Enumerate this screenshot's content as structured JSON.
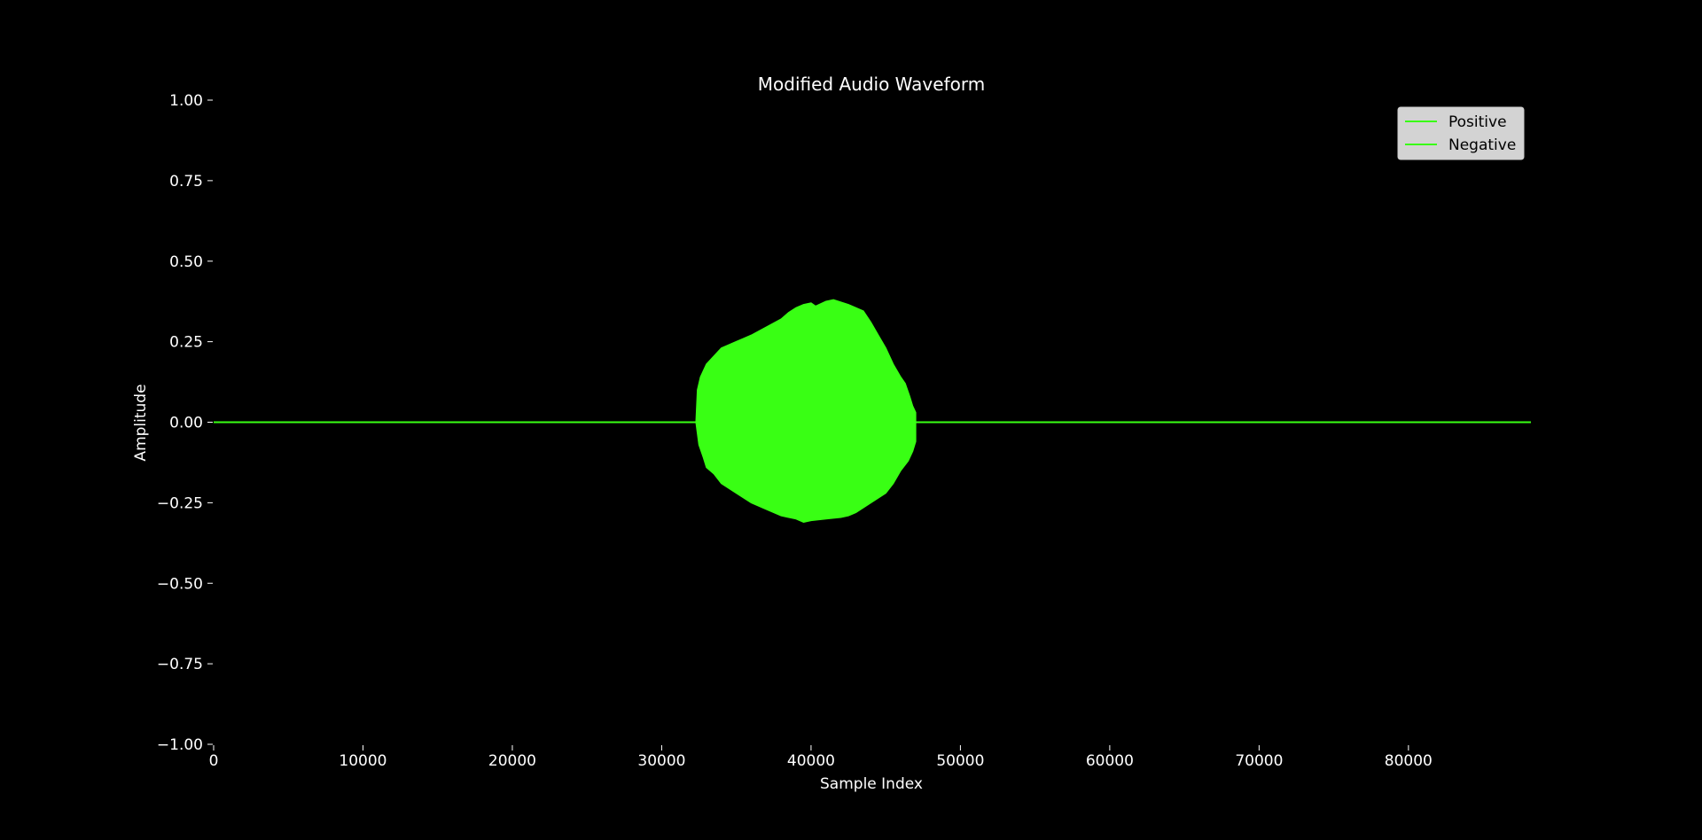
{
  "chart_data": {
    "type": "area",
    "title": "Modified Audio Waveform",
    "xlabel": "Sample Index",
    "ylabel": "Amplitude",
    "xlim": [
      0,
      88200
    ],
    "ylim": [
      -1.0,
      1.0
    ],
    "x_ticks": [
      0,
      10000,
      20000,
      30000,
      40000,
      50000,
      60000,
      70000,
      80000
    ],
    "x_tick_labels": [
      "0",
      "10000",
      "20000",
      "30000",
      "40000",
      "50000",
      "60000",
      "70000",
      "80000"
    ],
    "y_ticks": [
      1.0,
      0.75,
      0.5,
      0.25,
      0.0,
      -0.25,
      -0.5,
      -0.75,
      -1.0
    ],
    "y_tick_labels": [
      "1.00",
      "0.75",
      "0.50",
      "0.25",
      "0.00",
      "−0.25",
      "−0.50",
      "−0.75",
      "−1.00"
    ],
    "grid": false,
    "legend_position": "top-right",
    "background_color": "#000000",
    "text_color": "#ffffff",
    "legend_background": "#d3d3d3",
    "series": [
      {
        "name": "Positive",
        "color": "#39ff14",
        "x": [
          0,
          32300,
          32400,
          32600,
          32800,
          33000,
          33400,
          34000,
          35000,
          36000,
          37000,
          38000,
          38500,
          39000,
          39500,
          40000,
          40300,
          41000,
          41500,
          42500,
          43000,
          43500,
          44000,
          44500,
          45000,
          45500,
          46000,
          46300,
          46600,
          46800,
          47000,
          47000,
          88200
        ],
        "values": [
          0.0,
          0.0,
          0.1,
          0.14,
          0.16,
          0.18,
          0.2,
          0.23,
          0.25,
          0.27,
          0.295,
          0.32,
          0.34,
          0.355,
          0.365,
          0.37,
          0.36,
          0.375,
          0.38,
          0.365,
          0.355,
          0.345,
          0.31,
          0.27,
          0.23,
          0.18,
          0.14,
          0.12,
          0.08,
          0.05,
          0.03,
          0.0,
          0.0
        ]
      },
      {
        "name": "Negative",
        "color": "#39ff14",
        "x": [
          0,
          32300,
          32500,
          32800,
          33000,
          33500,
          34000,
          35000,
          36000,
          37000,
          38000,
          39000,
          39500,
          40000,
          41000,
          42000,
          42500,
          43000,
          44000,
          45000,
          45500,
          46000,
          46500,
          46800,
          47000,
          47000,
          88200
        ],
        "values": [
          0.0,
          0.0,
          -0.07,
          -0.11,
          -0.14,
          -0.16,
          -0.19,
          -0.22,
          -0.25,
          -0.27,
          -0.29,
          -0.3,
          -0.31,
          -0.305,
          -0.3,
          -0.295,
          -0.29,
          -0.28,
          -0.25,
          -0.22,
          -0.19,
          -0.15,
          -0.12,
          -0.09,
          -0.06,
          0.0,
          0.0
        ]
      }
    ]
  }
}
